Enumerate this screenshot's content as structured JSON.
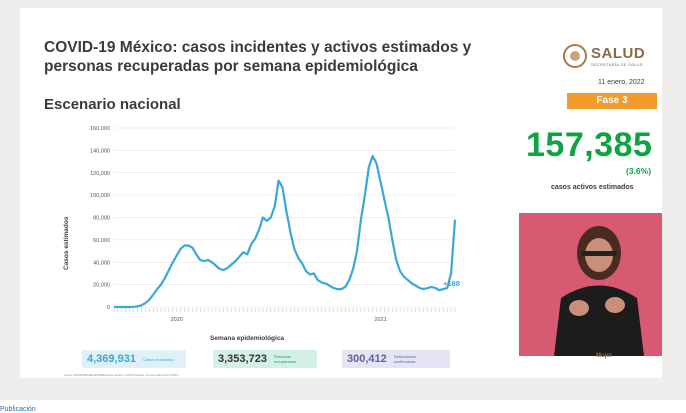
{
  "slide": {
    "title": "COVID-19 México: casos incidentes y activos estimados y personas recuperadas por semana epidemiológica",
    "subtitle": "Escenario nacional",
    "logo_name": "SALUD",
    "logo_sub": "SECRETARÍA DE SALUD",
    "date": "11 enero, 2022",
    "fase": "Fase 3",
    "big_number": "157,385",
    "big_percent": "(3.6%)",
    "big_caption": "casos activos estimados",
    "footnote": "Fuente: SSA/SPPS/DGE/DIE/INDRE/Informe técnico. COVID-19 México. 11 enero 2022 (corte 9:00hrs).",
    "footer_emblem": "Mujer",
    "below_text": "Publicación"
  },
  "stats": {
    "cases": {
      "value": "4,369,931",
      "label": "Casos estimados"
    },
    "recovered": {
      "value": "3,353,723",
      "label": "Personas recuperadas"
    },
    "deaths": {
      "value": "300,412",
      "label": "Defunciones confirmadas"
    }
  },
  "colors": {
    "line": "#3aa7d6",
    "green": "#0fa443",
    "orange": "#f39a2c",
    "title": "#3b3b3b"
  },
  "chart_data": {
    "type": "line",
    "xlabel": "Semana epidemiológica",
    "ylabel": "Casos estimados",
    "ylim": [
      0,
      160000
    ],
    "yticks": [
      "0",
      "20,000",
      "40,000",
      "60,000",
      "80,000",
      "100,000",
      "120,000",
      "140,000",
      "160,000"
    ],
    "ytick_values": [
      0,
      20000,
      40000,
      60000,
      80000,
      100000,
      120000,
      140000,
      160000
    ],
    "year_labels": [
      {
        "label": "2020",
        "week": 16
      },
      {
        "label": "2021",
        "week": 68
      }
    ],
    "annotation": "+188%",
    "grid": true,
    "series": [
      {
        "values": [
          0,
          0,
          0,
          0,
          0,
          200,
          500,
          1500,
          3500,
          6500,
          11000,
          16000,
          20000,
          26000,
          33000,
          40000,
          46000,
          52000,
          55000,
          55000,
          53000,
          47000,
          42000,
          41000,
          42000,
          40000,
          37000,
          34000,
          33000,
          35000,
          38000,
          41000,
          45000,
          49000,
          47000,
          56000,
          61000,
          69000,
          80000,
          77000,
          80000,
          90000,
          113000,
          107000,
          85000,
          67000,
          52000,
          44000,
          39000,
          32000,
          29000,
          30000,
          24000,
          22000,
          21000,
          19000,
          17000,
          16000,
          16000,
          18000,
          24000,
          34000,
          50000,
          78000,
          100000,
          125000,
          135000,
          128000,
          112000,
          96000,
          80000,
          60000,
          42000,
          32000,
          27000,
          24000,
          21000,
          19000,
          17000,
          16000,
          17000,
          18000,
          17000,
          15000,
          16000,
          17000,
          30000,
          78000
        ]
      }
    ]
  }
}
